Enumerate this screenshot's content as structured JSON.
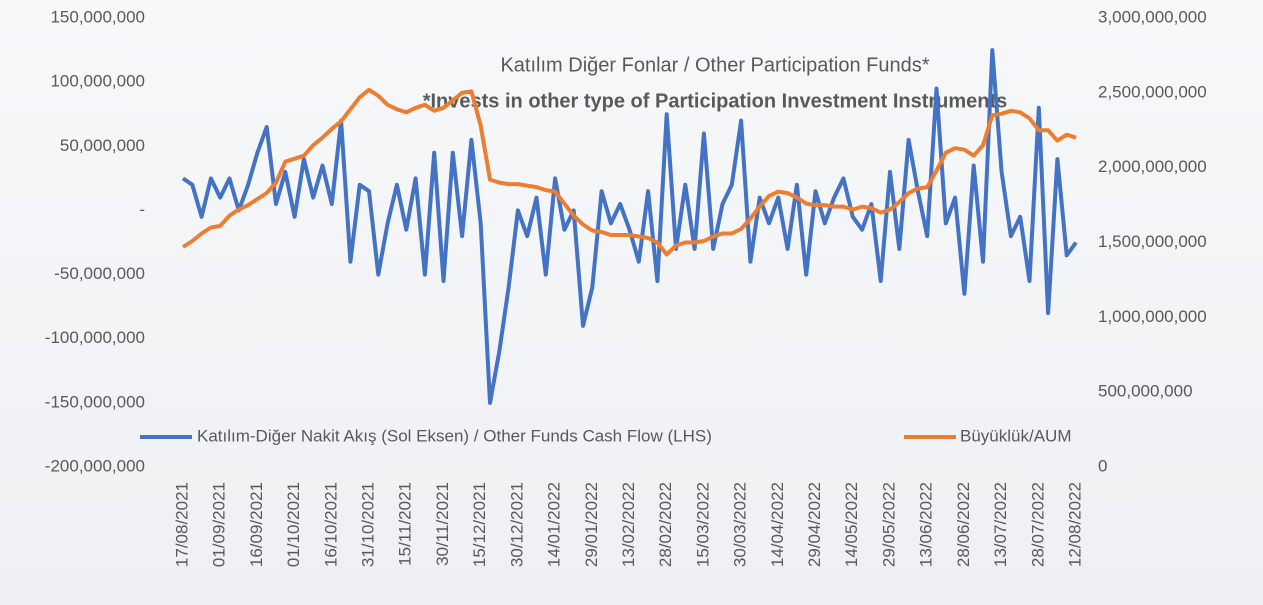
{
  "chart_data": {
    "type": "line",
    "title": "Katılım Diğer Fonlar / Other Participation Funds*",
    "subtitle": "*Invests in other type of Participation Investment Instruments",
    "categories": [
      "17/08/2021",
      null,
      null,
      null,
      "01/09/2021",
      null,
      null,
      null,
      "16/09/2021",
      null,
      null,
      null,
      "01/10/2021",
      null,
      null,
      null,
      "16/10/2021",
      null,
      null,
      null,
      "31/10/2021",
      null,
      null,
      null,
      "15/11/2021",
      null,
      null,
      null,
      "30/11/2021",
      null,
      null,
      null,
      "15/12/2021",
      null,
      null,
      null,
      "30/12/2021",
      null,
      null,
      null,
      "14/01/2022",
      null,
      null,
      null,
      "29/01/2022",
      null,
      null,
      null,
      "13/02/2022",
      null,
      null,
      null,
      "28/02/2022",
      null,
      null,
      null,
      "15/03/2022",
      null,
      null,
      null,
      "30/03/2022",
      null,
      null,
      null,
      "14/04/2022",
      null,
      null,
      null,
      "29/04/2022",
      null,
      null,
      null,
      "14/05/2022",
      null,
      null,
      null,
      "29/05/2022",
      null,
      null,
      null,
      "13/06/2022",
      null,
      null,
      null,
      "28/06/2022",
      null,
      null,
      null,
      "13/07/2022",
      null,
      null,
      null,
      "28/07/2022",
      null,
      null,
      null,
      "12/08/2022"
    ],
    "series": [
      {
        "name": "Katılım-Diğer Nakit Akış (Sol Eksen) / Other Funds Cash Flow (LHS)",
        "color": "#4472c4",
        "axis": "y",
        "values": [
          25000000,
          20000000,
          -5000000,
          25000000,
          10000000,
          25000000,
          0,
          20000000,
          45000000,
          65000000,
          5000000,
          30000000,
          -5000000,
          40000000,
          10000000,
          35000000,
          5000000,
          70000000,
          -40000000,
          20000000,
          15000000,
          -50000000,
          -10000000,
          20000000,
          -15000000,
          25000000,
          -50000000,
          45000000,
          -55000000,
          45000000,
          -20000000,
          55000000,
          -10000000,
          -150000000,
          -110000000,
          -60000000,
          0,
          -20000000,
          10000000,
          -50000000,
          25000000,
          -15000000,
          0,
          -90000000,
          -60000000,
          15000000,
          -10000000,
          5000000,
          -15000000,
          -40000000,
          15000000,
          -55000000,
          75000000,
          -30000000,
          20000000,
          -30000000,
          60000000,
          -30000000,
          5000000,
          20000000,
          70000000,
          -40000000,
          10000000,
          -10000000,
          10000000,
          -30000000,
          20000000,
          -50000000,
          15000000,
          -10000000,
          10000000,
          25000000,
          -5000000,
          -15000000,
          5000000,
          -55000000,
          30000000,
          -30000000,
          55000000,
          15000000,
          -20000000,
          95000000,
          -10000000,
          10000000,
          -65000000,
          35000000,
          -40000000,
          125000000,
          30000000,
          -20000000,
          -5000000,
          -55000000,
          80000000,
          -80000000,
          40000000,
          -35000000,
          -25000000
        ]
      },
      {
        "name": "Büyüklük/AUM",
        "color": "#ed7d31",
        "axis": "y2",
        "values": [
          1470000000,
          1510000000,
          1560000000,
          1600000000,
          1610000000,
          1680000000,
          1720000000,
          1750000000,
          1790000000,
          1830000000,
          1900000000,
          2040000000,
          2060000000,
          2080000000,
          2150000000,
          2200000000,
          2260000000,
          2310000000,
          2390000000,
          2470000000,
          2520000000,
          2480000000,
          2420000000,
          2390000000,
          2370000000,
          2400000000,
          2420000000,
          2380000000,
          2400000000,
          2450000000,
          2500000000,
          2510000000,
          2280000000,
          1920000000,
          1900000000,
          1890000000,
          1890000000,
          1880000000,
          1870000000,
          1850000000,
          1840000000,
          1760000000,
          1680000000,
          1620000000,
          1580000000,
          1570000000,
          1550000000,
          1550000000,
          1550000000,
          1540000000,
          1530000000,
          1500000000,
          1420000000,
          1480000000,
          1500000000,
          1500000000,
          1510000000,
          1540000000,
          1560000000,
          1560000000,
          1590000000,
          1660000000,
          1740000000,
          1810000000,
          1840000000,
          1830000000,
          1800000000,
          1760000000,
          1750000000,
          1750000000,
          1740000000,
          1740000000,
          1720000000,
          1740000000,
          1730000000,
          1700000000,
          1720000000,
          1770000000,
          1830000000,
          1860000000,
          1870000000,
          1980000000,
          2100000000,
          2130000000,
          2120000000,
          2080000000,
          2150000000,
          2350000000,
          2360000000,
          2380000000,
          2370000000,
          2330000000,
          2250000000,
          2250000000,
          2180000000,
          2220000000,
          2200000000
        ]
      }
    ],
    "ylim": [
      -200000000,
      150000000
    ],
    "yticks": [
      {
        "value": -200000000,
        "label": "-200,000,000"
      },
      {
        "value": -150000000,
        "label": "-150,000,000"
      },
      {
        "value": -100000000,
        "label": "-100,000,000"
      },
      {
        "value": -50000000,
        "label": "-50,000,000"
      },
      {
        "value": 0,
        "label": "-"
      },
      {
        "value": 50000000,
        "label": "50,000,000"
      },
      {
        "value": 100000000,
        "label": "100,000,000"
      },
      {
        "value": 150000000,
        "label": "150,000,000"
      }
    ],
    "y2lim": [
      0,
      3000000000
    ],
    "y2ticks": [
      0,
      {
        "value": 500000000,
        "label": "500,000,000"
      },
      {
        "value": 1000000000,
        "label": "1,000,000,000"
      },
      {
        "value": 1500000000,
        "label": "1,500,000,000"
      },
      {
        "value": 2000000000,
        "label": "2,000,000,000"
      },
      {
        "value": 2500000000,
        "label": "2,500,000,000"
      },
      {
        "value": 3000000000,
        "label": "3,000,000,000"
      }
    ],
    "legend": "bottom"
  }
}
